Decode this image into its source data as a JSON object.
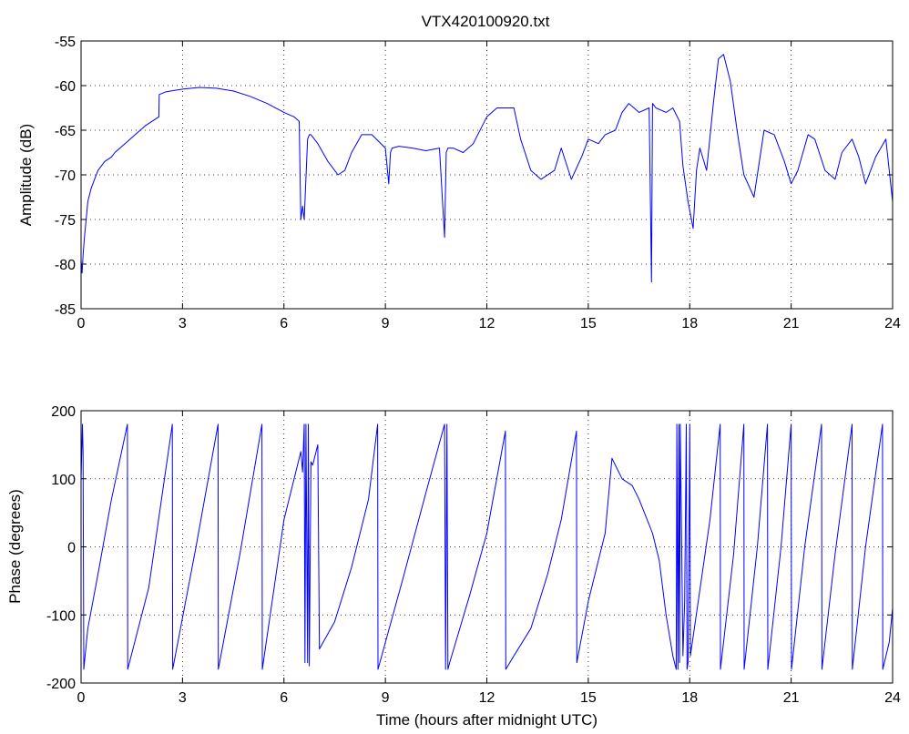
{
  "title": "VTX420100920.txt",
  "series_color": "#0000ff",
  "chart_data": [
    {
      "type": "line",
      "title": "VTX420100920.txt",
      "xlabel": "",
      "ylabel": "Amplitude (dB)",
      "xlim": [
        0,
        24
      ],
      "ylim": [
        -85,
        -55
      ],
      "xticks": [
        0,
        3,
        6,
        9,
        12,
        15,
        18,
        21,
        24
      ],
      "yticks": [
        -85,
        -80,
        -75,
        -70,
        -65,
        -60,
        -55
      ],
      "grid": true,
      "x": [
        0,
        0.03,
        0.06,
        0.1,
        0.15,
        0.2,
        0.3,
        0.4,
        0.5,
        0.7,
        0.9,
        1.0,
        1.3,
        1.6,
        1.9,
        2.1,
        2.3,
        2.31,
        2.5,
        3.0,
        3.5,
        4.0,
        4.5,
        5.0,
        5.5,
        6.0,
        6.3,
        6.45,
        6.5,
        6.55,
        6.6,
        6.7,
        6.75,
        6.8,
        7.0,
        7.3,
        7.6,
        7.8,
        8.0,
        8.3,
        8.6,
        9.0,
        9.1,
        9.15,
        9.2,
        9.4,
        9.8,
        10.2,
        10.6,
        10.75,
        10.8,
        10.85,
        11.0,
        11.3,
        11.6,
        12.0,
        12.3,
        12.8,
        13.0,
        13.3,
        13.6,
        14.0,
        14.2,
        14.5,
        14.8,
        15.0,
        15.3,
        15.5,
        15.8,
        16.0,
        16.2,
        16.5,
        16.8,
        16.87,
        16.9,
        17.0,
        17.3,
        17.5,
        17.7,
        17.8,
        17.95,
        18.1,
        18.2,
        18.3,
        18.5,
        18.7,
        18.85,
        19.0,
        19.2,
        19.4,
        19.6,
        19.9,
        20.2,
        20.5,
        20.8,
        21.0,
        21.2,
        21.5,
        21.7,
        22.0,
        22.3,
        22.5,
        22.8,
        23.0,
        23.2,
        23.5,
        23.8,
        24.0
      ],
      "values": [
        -79.5,
        -81,
        -79,
        -77,
        -75,
        -73,
        -71.5,
        -70.5,
        -69.5,
        -68.5,
        -68,
        -67.5,
        -66.5,
        -65.5,
        -64.5,
        -64,
        -63.5,
        -61,
        -60.7,
        -60.4,
        -60.2,
        -60.3,
        -60.6,
        -61.2,
        -62,
        -63,
        -63.5,
        -64,
        -75,
        -73.5,
        -75,
        -66,
        -65.5,
        -65.5,
        -66.5,
        -68.5,
        -70,
        -69.5,
        -67.5,
        -65.5,
        -65.5,
        -67,
        -71,
        -67.5,
        -67,
        -66.8,
        -67,
        -67.3,
        -67,
        -77,
        -67.5,
        -67,
        -67,
        -67.5,
        -66.5,
        -63.5,
        -62.5,
        -62.5,
        -66,
        -69.5,
        -70.5,
        -69.5,
        -67,
        -70.5,
        -68,
        -66,
        -66.5,
        -65.5,
        -65,
        -63,
        -62,
        -63,
        -62.5,
        -82,
        -62,
        -62.5,
        -63,
        -62.5,
        -64,
        -69,
        -73,
        -76,
        -69.5,
        -67,
        -69.5,
        -62,
        -57,
        -56.5,
        -59.5,
        -65,
        -70,
        -72.5,
        -65,
        -65.5,
        -68.5,
        -71,
        -69.5,
        -65.5,
        -66,
        -69.5,
        -70.5,
        -67.5,
        -66,
        -68,
        -71,
        -68,
        -66,
        -73
      ]
    },
    {
      "type": "line",
      "title": "",
      "xlabel": "Time (hours after midnight UTC)",
      "ylabel": "Phase (degrees)",
      "xlim": [
        0,
        24
      ],
      "ylim": [
        -200,
        200
      ],
      "xticks": [
        0,
        3,
        6,
        9,
        12,
        15,
        18,
        21,
        24
      ],
      "yticks": [
        -200,
        -100,
        0,
        100,
        200
      ],
      "grid": true,
      "x": [
        0,
        0.04,
        0.06,
        0.08,
        0.1,
        0.2,
        0.5,
        0.9,
        1.37,
        1.38,
        2.0,
        2.7,
        2.71,
        3.4,
        4.05,
        4.06,
        4.7,
        5.35,
        5.36,
        6.0,
        6.3,
        6.5,
        6.55,
        6.6,
        6.62,
        6.65,
        6.7,
        6.72,
        6.75,
        6.8,
        6.85,
        7.0,
        7.05,
        7.5,
        8.0,
        8.5,
        8.77,
        8.78,
        9.5,
        10.2,
        10.75,
        10.78,
        10.82,
        10.85,
        10.9,
        11.5,
        12.0,
        12.55,
        12.56,
        12.8,
        13.3,
        13.8,
        14.2,
        14.65,
        14.66,
        15.0,
        15.5,
        15.7,
        16.0,
        16.3,
        16.5,
        16.9,
        17.1,
        17.3,
        17.5,
        17.6,
        17.62,
        17.65,
        17.68,
        17.7,
        17.72,
        17.8,
        17.85,
        17.9,
        17.92,
        17.95,
        18.0,
        18.02,
        18.6,
        18.9,
        18.91,
        19.3,
        19.6,
        19.61,
        20.0,
        20.3,
        20.31,
        20.7,
        21.0,
        21.01,
        21.4,
        21.9,
        21.91,
        22.3,
        22.8,
        22.81,
        23.2,
        23.7,
        23.71,
        23.9,
        24.0
      ],
      "values": [
        100,
        180,
        140,
        -180,
        -170,
        -120,
        -40,
        70,
        180,
        -180,
        -60,
        180,
        -180,
        0,
        180,
        -180,
        -10,
        180,
        -180,
        40,
        100,
        140,
        110,
        180,
        -170,
        180,
        -170,
        180,
        -175,
        125,
        120,
        150,
        -150,
        -110,
        -30,
        70,
        180,
        -180,
        -50,
        80,
        180,
        -180,
        180,
        -180,
        -170,
        -70,
        20,
        170,
        -180,
        -160,
        -120,
        -40,
        40,
        170,
        -170,
        -80,
        20,
        130,
        100,
        90,
        70,
        20,
        -20,
        -100,
        -160,
        -180,
        180,
        -180,
        180,
        -170,
        180,
        -160,
        -80,
        180,
        -180,
        -170,
        180,
        -160,
        40,
        180,
        -180,
        -10,
        180,
        -180,
        0,
        180,
        -180,
        0,
        180,
        -180,
        0,
        180,
        -180,
        -10,
        180,
        -180,
        0,
        180,
        -180,
        -140,
        -90
      ]
    }
  ]
}
